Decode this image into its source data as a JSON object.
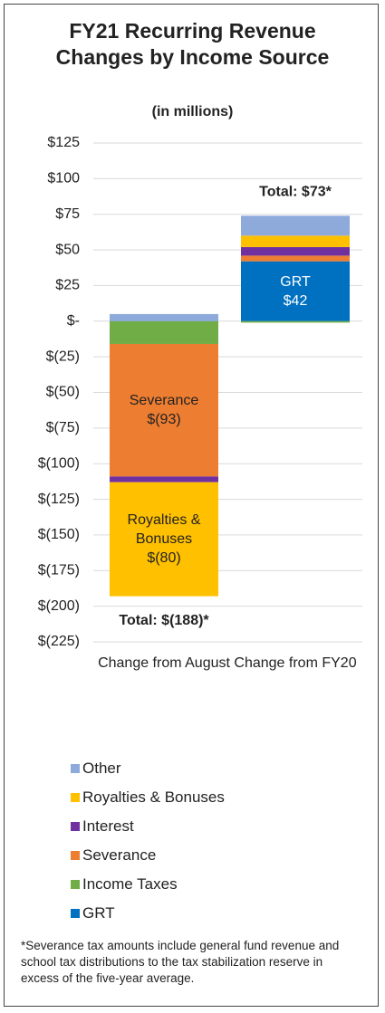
{
  "chart_data": {
    "type": "stacked_bar",
    "title": "FY21 Recurring Revenue Changes by Income Source",
    "subtitle": "(in millions)",
    "categories": [
      "Change from August",
      "Change from FY20"
    ],
    "series": [
      {
        "name": "GRT",
        "color": "#0070c0",
        "label_color": "#ffffff",
        "values": [
          0,
          42
        ],
        "value_labels": [
          null,
          "$42"
        ]
      },
      {
        "name": "Income Taxes",
        "color": "#70ad47",
        "values": [
          -16,
          -1
        ]
      },
      {
        "name": "Severance",
        "color": "#ed7d31",
        "label_color": "#222222",
        "values": [
          -93,
          4
        ],
        "value_labels": [
          "$(93)",
          null
        ]
      },
      {
        "name": "Interest",
        "color": "#7030a0",
        "values": [
          -4,
          6
        ]
      },
      {
        "name": "Royalties & Bonuses",
        "color": "#ffc000",
        "label_color": "#222222",
        "values": [
          -80,
          8
        ],
        "value_labels": [
          "$(80)",
          null
        ]
      },
      {
        "name": "Other",
        "color": "#8eaadb",
        "values": [
          5,
          14
        ]
      }
    ],
    "annotations": [
      "Total: $(188)*",
      "Total: $73*"
    ],
    "ylim": [
      -225,
      125
    ],
    "yticks": [
      {
        "value": 125,
        "label": "$125"
      },
      {
        "value": 100,
        "label": "$100"
      },
      {
        "value": 75,
        "label": "$75"
      },
      {
        "value": 50,
        "label": "$50"
      },
      {
        "value": 25,
        "label": "$25"
      },
      {
        "value": 0,
        "label": "$-"
      },
      {
        "value": -25,
        "label": "$(25)"
      },
      {
        "value": -50,
        "label": "$(50)"
      },
      {
        "value": -75,
        "label": "$(75)"
      },
      {
        "value": -100,
        "label": "$(100)"
      },
      {
        "value": -125,
        "label": "$(125)"
      },
      {
        "value": -150,
        "label": "$(150)"
      },
      {
        "value": -175,
        "label": "$(175)"
      },
      {
        "value": -200,
        "label": "$(200)"
      },
      {
        "value": -225,
        "label": "$(225)"
      }
    ],
    "grid": true,
    "footnote": "*Severance tax amounts include general fund revenue and school tax distributions to the tax stabilization reserve in excess of the five-year average."
  }
}
